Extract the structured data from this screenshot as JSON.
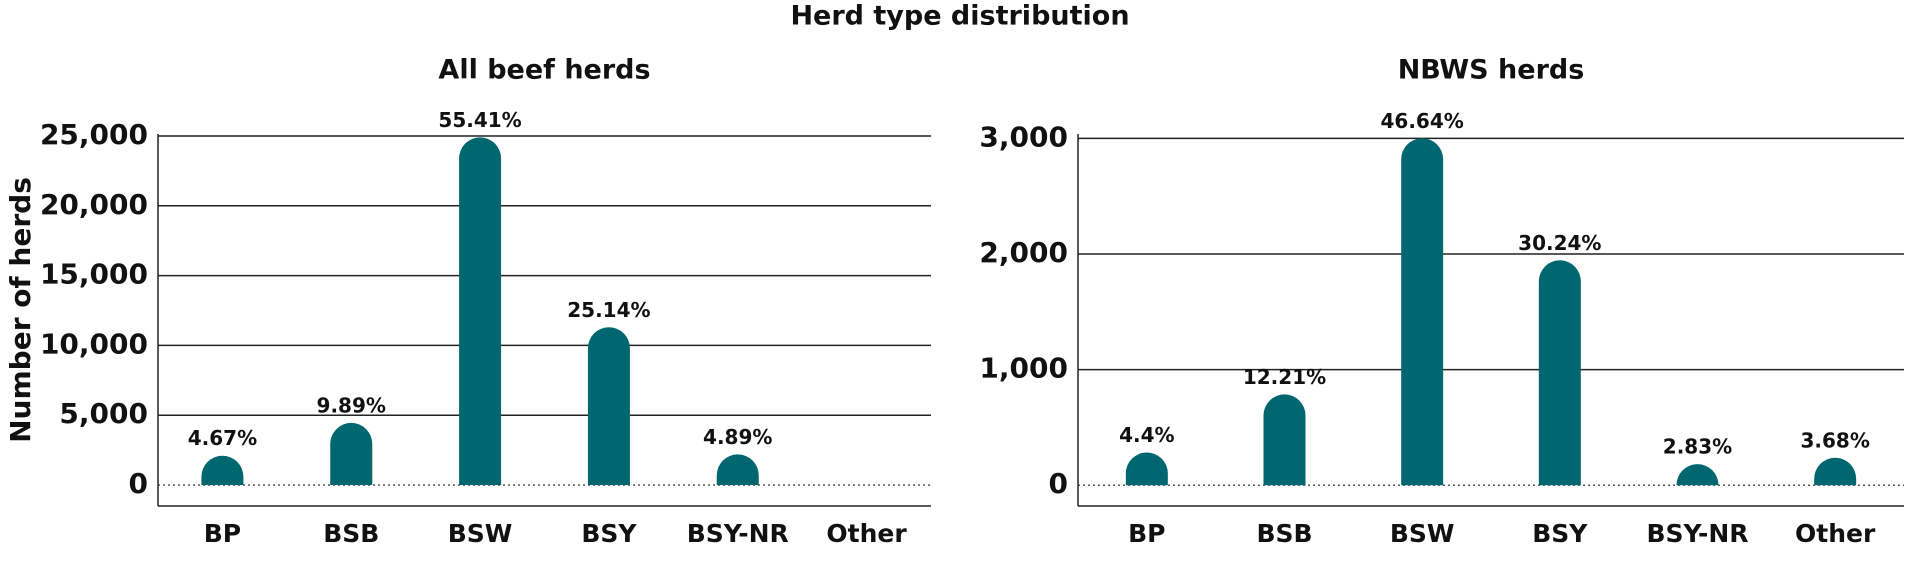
{
  "title": "Herd type distribution",
  "y_label": "Number of herds",
  "chart_data": [
    {
      "type": "bar",
      "title": "All beef herds",
      "categories": [
        "BP",
        "BSB",
        "BSW",
        "BSY",
        "BSY-NR",
        "Other"
      ],
      "values": [
        2100,
        4450,
        24900,
        11300,
        2200,
        0
      ],
      "shares": [
        4.67,
        9.89,
        55.41,
        25.14,
        4.89,
        null
      ],
      "share_labels": [
        "4.67%",
        "9.89%",
        "55.41%",
        "25.14%",
        "4.89%",
        null
      ],
      "color": "#00666f",
      "ylim": [
        -1500,
        25000
      ],
      "yticks": [
        0,
        {
          "value": 5000,
          "label": "5,000"
        },
        {
          "value": 10000,
          "label": "10,000"
        },
        {
          "value": 15000,
          "label": "15,000"
        },
        {
          "value": 20000,
          "label": "20,000"
        },
        {
          "value": 25000,
          "label": "25,000"
        }
      ],
      "grid": true
    },
    {
      "type": "bar",
      "title": "NBWS herds",
      "categories": [
        "BP",
        "BSB",
        "BSW",
        "BSY",
        "BSY-NR",
        "Other"
      ],
      "values": [
        283,
        785,
        3000,
        1945,
        182,
        237
      ],
      "shares": [
        4.4,
        12.21,
        46.64,
        30.24,
        2.83,
        3.68
      ],
      "share_labels": [
        "4.4%",
        "12.21%",
        "46.64%",
        "30.24%",
        "2.83%",
        "3.68%"
      ],
      "color": "#00666f",
      "ylim": [
        -180,
        3020
      ],
      "yticks": [
        0,
        {
          "value": 1000,
          "label": "1,000"
        },
        {
          "value": 2000,
          "label": "2,000"
        },
        {
          "value": 3000,
          "label": "3,000"
        }
      ],
      "grid": true
    }
  ]
}
